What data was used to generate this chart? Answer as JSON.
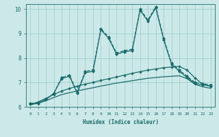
{
  "background_color": "#cce8e8",
  "grid_color": "#99cccc",
  "line_color": "#1a6b6b",
  "xlabel": "Humidex (Indice chaleur)",
  "xlim": [
    -0.5,
    23.5
  ],
  "ylim": [
    6,
    10.2
  ],
  "xticks": [
    0,
    1,
    2,
    3,
    4,
    5,
    6,
    7,
    8,
    9,
    10,
    11,
    12,
    13,
    14,
    15,
    16,
    17,
    18,
    19,
    20,
    21,
    22,
    23
  ],
  "yticks": [
    6,
    7,
    8,
    9,
    10
  ],
  "series": [
    {
      "x": [
        0,
        1,
        2,
        3,
        4,
        5,
        6,
        7,
        8,
        9,
        10,
        11,
        12,
        13,
        14,
        15,
        16,
        17,
        18,
        19,
        20,
        21,
        22,
        23
      ],
      "y": [
        6.15,
        6.15,
        6.3,
        6.55,
        7.2,
        7.3,
        6.6,
        7.45,
        7.5,
        9.2,
        8.85,
        8.2,
        8.3,
        8.35,
        10.0,
        9.55,
        10.1,
        8.8,
        7.8,
        7.5,
        7.25,
        7.0,
        6.95,
        6.9
      ],
      "marker": "D",
      "markersize": 2.0,
      "linewidth": 0.9,
      "linestyle": "--"
    },
    {
      "x": [
        0,
        1,
        2,
        3,
        4,
        5,
        6,
        7,
        8,
        9,
        10,
        11,
        12,
        13,
        14,
        15,
        16,
        17,
        18,
        19,
        20,
        21,
        22,
        23
      ],
      "y": [
        6.15,
        6.15,
        6.3,
        6.55,
        7.15,
        7.25,
        6.55,
        7.4,
        7.45,
        9.15,
        8.8,
        8.15,
        8.25,
        8.3,
        9.95,
        9.5,
        10.05,
        8.75,
        7.75,
        7.45,
        7.2,
        6.95,
        6.9,
        6.85
      ],
      "marker": "D",
      "markersize": 2.0,
      "linewidth": 0.9,
      "linestyle": "-"
    },
    {
      "x": [
        0,
        1,
        2,
        3,
        4,
        5,
        6,
        7,
        8,
        9,
        10,
        11,
        12,
        13,
        14,
        15,
        16,
        17,
        18,
        19,
        20,
        21,
        22,
        23
      ],
      "y": [
        6.1,
        6.2,
        6.35,
        6.5,
        6.65,
        6.75,
        6.85,
        6.93,
        7.0,
        7.08,
        7.15,
        7.22,
        7.3,
        7.37,
        7.44,
        7.5,
        7.55,
        7.6,
        7.63,
        7.65,
        7.5,
        7.18,
        6.92,
        6.85
      ],
      "marker": "D",
      "markersize": 1.8,
      "linewidth": 0.9,
      "linestyle": "-"
    },
    {
      "x": [
        0,
        1,
        2,
        3,
        4,
        5,
        6,
        7,
        8,
        9,
        10,
        11,
        12,
        13,
        14,
        15,
        16,
        17,
        18,
        19,
        20,
        21,
        22,
        23
      ],
      "y": [
        6.08,
        6.15,
        6.25,
        6.38,
        6.5,
        6.58,
        6.65,
        6.72,
        6.78,
        6.85,
        6.91,
        6.97,
        7.02,
        7.07,
        7.12,
        7.17,
        7.2,
        7.23,
        7.25,
        7.27,
        7.15,
        6.92,
        6.82,
        6.76
      ],
      "marker": null,
      "markersize": 0,
      "linewidth": 0.9,
      "linestyle": "-"
    }
  ]
}
